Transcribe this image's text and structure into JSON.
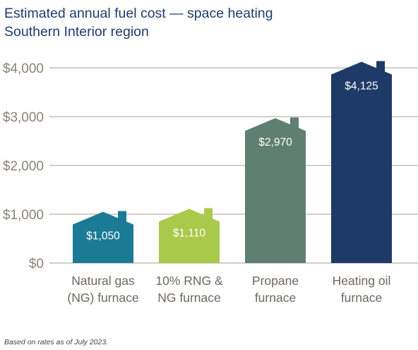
{
  "title_line1": "Estimated annual fuel cost — space heating",
  "title_line2": "Southern Interior region",
  "footnote": "Based on rates as of July 2023.",
  "colors": {
    "title": "#1f3c6e",
    "axis_text": "#8a8277",
    "grid": "#b9b4ac",
    "category_text": "#6e675e"
  },
  "chart_data": {
    "type": "bar",
    "mark_shape": "house",
    "categories": [
      [
        "Natural gas",
        "(NG) furnace"
      ],
      [
        "10% RNG &",
        "NG furnace"
      ],
      [
        "Propane",
        "furnace"
      ],
      [
        "Heating oil",
        "furnace"
      ]
    ],
    "values": [
      1050,
      1110,
      2970,
      4125
    ],
    "value_labels": [
      "$1,050",
      "$1,110",
      "$2,970",
      "$4,125"
    ],
    "bar_colors": [
      "#1b7b95",
      "#a9c94a",
      "#5f7f72",
      "#1e3a66"
    ],
    "y_ticks": [
      0,
      1000,
      2000,
      3000,
      4000
    ],
    "y_tick_labels": [
      "$0",
      "$1,000",
      "$2,000",
      "$3,000",
      "$4,000"
    ],
    "ylim": [
      0,
      4000
    ],
    "grid": true,
    "legend": "none",
    "xlabel": "",
    "ylabel": ""
  }
}
